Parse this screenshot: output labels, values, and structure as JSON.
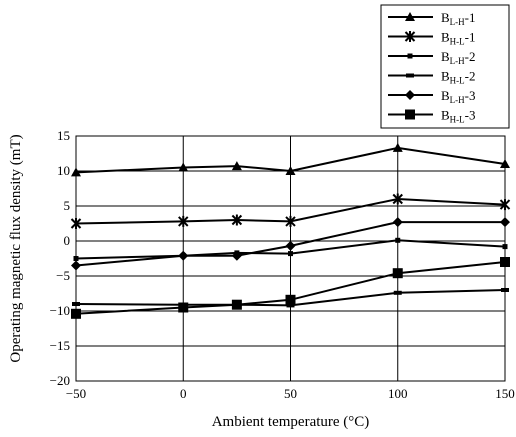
{
  "chart_data": {
    "type": "line",
    "xlabel": "Ambient temperature (°C)",
    "ylabel": "Operating magnetic flux density (mT)",
    "xlim": [
      -50,
      150
    ],
    "ylim": [
      -20,
      15
    ],
    "x_ticks": [
      "-50",
      "0",
      "50",
      "100",
      "150"
    ],
    "y_ticks": [
      "15",
      "10",
      "5",
      "0",
      "-5",
      "-10",
      "-15",
      "-20"
    ],
    "grid": true,
    "legend_position": "top-right",
    "series": [
      {
        "name": "B",
        "sub": "L-H",
        "suffix": "-1",
        "marker": "triangle",
        "x": [
          -50,
          0,
          25,
          50,
          100,
          150
        ],
        "y": [
          9.8,
          10.5,
          10.7,
          10.0,
          13.3,
          11.0
        ]
      },
      {
        "name": "B",
        "sub": "H-L",
        "suffix": "-1",
        "marker": "star",
        "x": [
          -50,
          0,
          25,
          50,
          100,
          150
        ],
        "y": [
          2.5,
          2.8,
          3.0,
          2.8,
          6.0,
          5.2
        ]
      },
      {
        "name": "B",
        "sub": "L-H",
        "suffix": "-2",
        "marker": "dash",
        "x": [
          -50,
          0,
          25,
          50,
          100,
          150
        ],
        "y": [
          -2.5,
          -2.1,
          -1.7,
          -1.8,
          0.1,
          -0.8
        ]
      },
      {
        "name": "B",
        "sub": "H-L",
        "suffix": "-2",
        "marker": "bar",
        "x": [
          -50,
          0,
          25,
          50,
          100,
          150
        ],
        "y": [
          -9.0,
          -9.1,
          -9.1,
          -9.2,
          -7.4,
          -7.0
        ]
      },
      {
        "name": "B",
        "sub": "L-H",
        "suffix": "-3",
        "marker": "diamond",
        "x": [
          -50,
          0,
          25,
          50,
          100,
          150
        ],
        "y": [
          -3.5,
          -2.1,
          -2.1,
          -0.7,
          2.7,
          2.7
        ]
      },
      {
        "name": "B",
        "sub": "H-L",
        "suffix": "-3",
        "marker": "square",
        "x": [
          -50,
          0,
          25,
          50,
          100,
          150
        ],
        "y": [
          -10.4,
          -9.5,
          -9.1,
          -8.4,
          -4.6,
          -3.0
        ]
      }
    ]
  }
}
